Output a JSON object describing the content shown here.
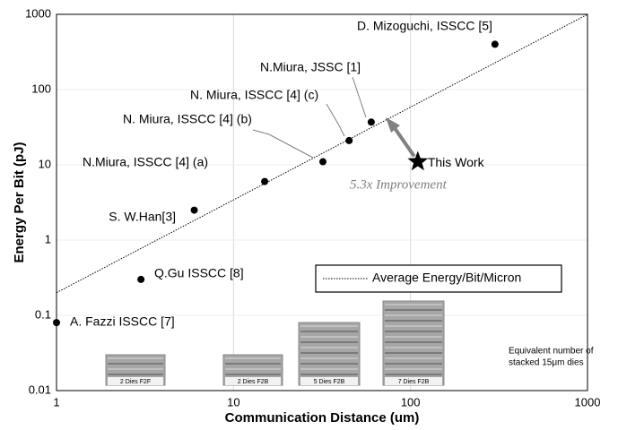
{
  "chart_data": {
    "type": "scatter",
    "ylabel": "Energy Per Bit (pJ)",
    "xlabel": "Communication Distance (um)",
    "log_x": true,
    "log_y": true,
    "grid": true,
    "xlim": [
      1,
      1000
    ],
    "xticks": [
      1,
      10,
      100,
      1000
    ],
    "ylim": [
      0.01,
      1000
    ],
    "yticks": [
      0.01,
      0.1,
      1,
      10,
      100,
      1000
    ],
    "color": "#000000",
    "x": [
      1,
      3,
      6,
      15,
      32,
      45,
      60,
      300
    ],
    "values": [
      0.08,
      0.3,
      2.5,
      6,
      11,
      21,
      37,
      400
    ],
    "point_labels": [
      "A. Fazzi ISSCC [7]",
      "Q.Gu ISSCC [8]",
      "S. W.Han[3]",
      "N.Miura, ISSCC [4] (a)",
      "N. Miura, ISSCC [4] (b)",
      "N. Miura, ISSCC [4] (c)",
      "N.Miura, JSSC [1]",
      "D. Mizoguchi, ISSCC [5]"
    ],
    "this_work": {
      "label": "This Work",
      "x": 110,
      "y": 11
    },
    "annotation": "5.3x Improvement",
    "trend": {
      "name": "Average Energy/Bit/Micron",
      "x": [
        1,
        1000
      ],
      "values": [
        0.2,
        1000
      ]
    },
    "die_stacks": [
      "2 Dies F2F",
      "2 Dies F2B",
      "5 Dies F2B",
      "7 Dies F2B"
    ],
    "die_note": [
      "Equivalent number of",
      "stacked 15μm dies"
    ]
  }
}
